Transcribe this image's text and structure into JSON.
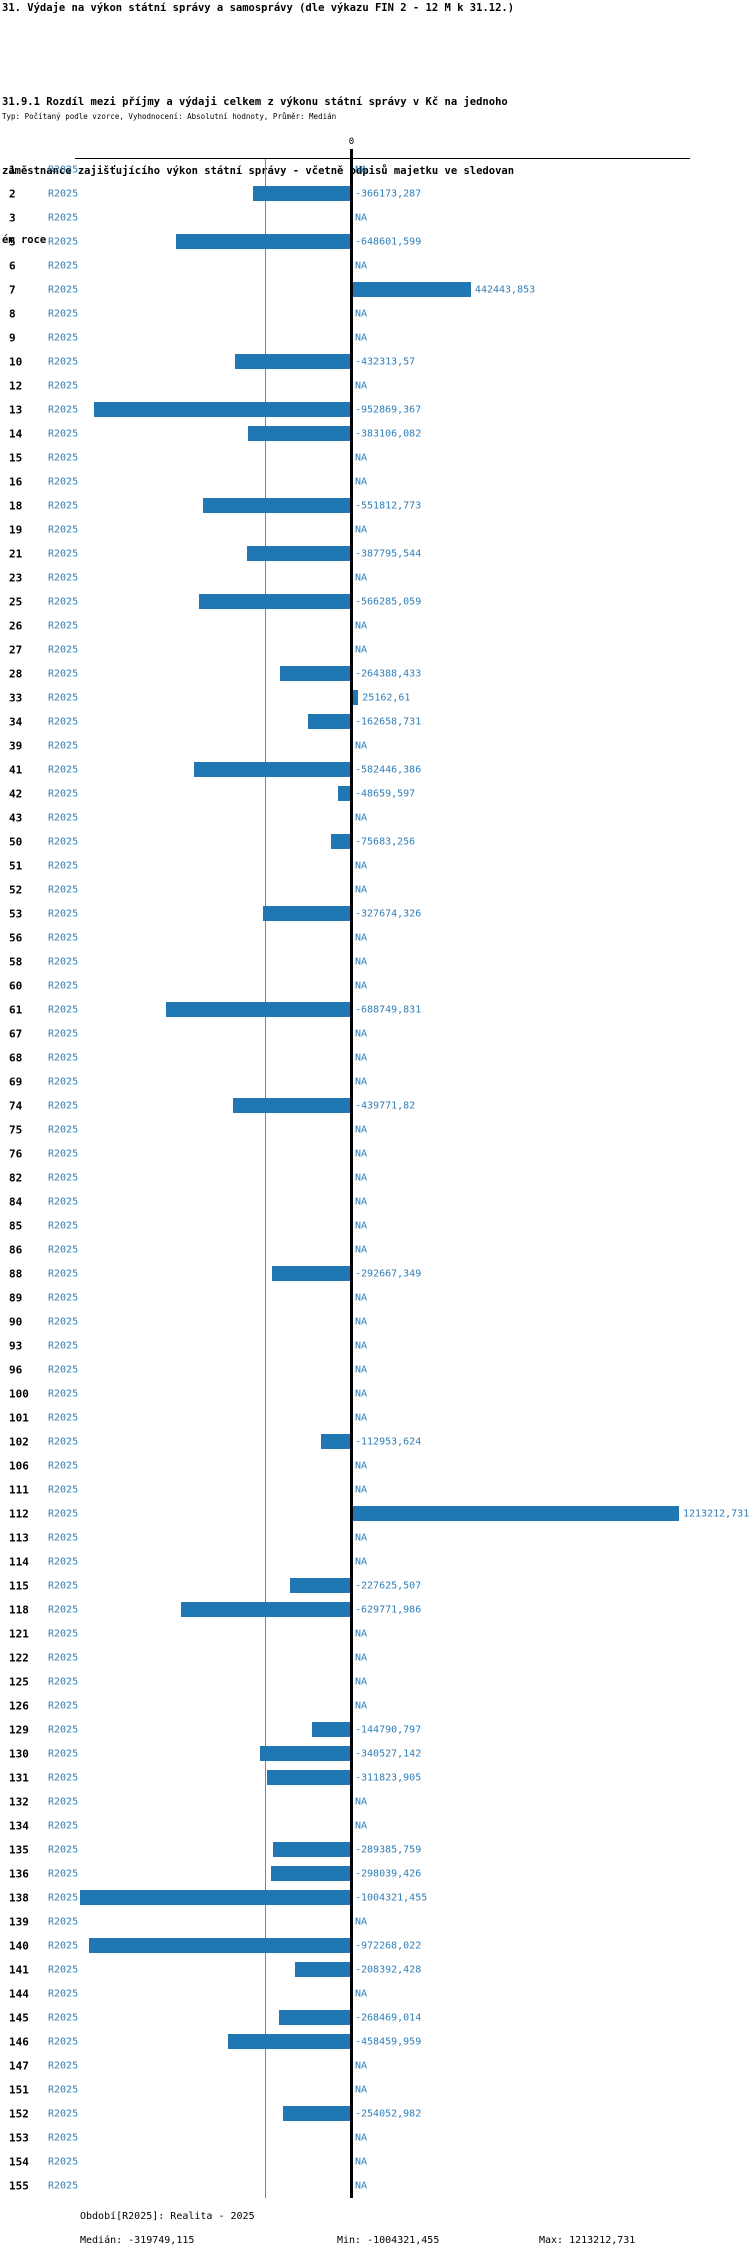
{
  "title": "31. Výdaje na výkon státní správy a samosprávy (dle výkazu FIN 2 - 12 M k 31.12.)",
  "subtitle_lines": [
    "31.9.1 Rozdíl mezi příjmy a výdaji celkem z výkonu státní správy v Kč na jednoho",
    "zaměstnance zajišťujícího výkon státní správy - včetně odpisů majetku ve sledovan",
    "ém roce"
  ],
  "meta": "Typ: Počítaný podle vzorce, Vyhodnocení: Absolutní hodnoty, Průměr: Medián",
  "axis": {
    "zero_label": "0"
  },
  "series_label": "R2025",
  "colors": {
    "bar": "#1f77b4",
    "blue_text": "#2e7eb8",
    "median_line": "#4a94c8",
    "zero_line": "#000000"
  },
  "footer": {
    "period": "Období[R2025]: Realita - 2025",
    "median": "Medián: -319749,115",
    "min": "Min: -1004321,455",
    "max": "Max: 1213212,731"
  },
  "chart_data": {
    "type": "bar",
    "orientation": "horizontal",
    "series_name": "R2025",
    "na_label": "NA",
    "median": -319749.115,
    "min": -1004321.455,
    "max": 1213212.731,
    "categories": [
      1,
      2,
      3,
      5,
      6,
      7,
      8,
      9,
      10,
      12,
      13,
      14,
      15,
      16,
      18,
      19,
      21,
      23,
      25,
      26,
      27,
      28,
      33,
      34,
      39,
      41,
      42,
      43,
      50,
      51,
      52,
      53,
      56,
      58,
      60,
      61,
      67,
      68,
      69,
      74,
      75,
      76,
      82,
      84,
      85,
      86,
      88,
      89,
      90,
      93,
      96,
      100,
      101,
      102,
      106,
      111,
      112,
      113,
      114,
      115,
      118,
      121,
      122,
      125,
      126,
      129,
      130,
      131,
      132,
      134,
      135,
      136,
      138,
      139,
      140,
      141,
      144,
      145,
      146,
      147,
      151,
      152,
      153,
      154,
      155
    ],
    "values": [
      null,
      -366173.287,
      null,
      -648601.599,
      null,
      442443.853,
      null,
      null,
      -432313.57,
      null,
      -952869.367,
      -383106.082,
      null,
      null,
      -551812.773,
      null,
      -387795.544,
      null,
      -566285.059,
      null,
      null,
      -264388.433,
      25162.61,
      -162658.731,
      null,
      -582446.386,
      -48659.597,
      null,
      -75683.256,
      null,
      null,
      -327674.326,
      null,
      null,
      null,
      -688749.831,
      null,
      null,
      null,
      -439771.82,
      null,
      null,
      null,
      null,
      null,
      null,
      -292667.349,
      null,
      null,
      null,
      null,
      null,
      null,
      -112953.624,
      null,
      null,
      1213212.731,
      null,
      null,
      -227625.507,
      -629771.986,
      null,
      null,
      null,
      null,
      -144790.797,
      -340527.142,
      -311823.905,
      null,
      null,
      -289385.759,
      -298039.426,
      -1004321.455,
      null,
      -972268.022,
      -208392.428,
      null,
      -268469.014,
      -458459.959,
      null,
      null,
      -254052.982,
      null,
      null,
      null
    ],
    "value_labels": [
      "NA",
      "-366173,287",
      "NA",
      "-648601,599",
      "NA",
      "442443,853",
      "NA",
      "NA",
      "-432313,57",
      "NA",
      "-952869,367",
      "-383106,082",
      "NA",
      "NA",
      "-551812,773",
      "NA",
      "-387795,544",
      "NA",
      "-566285,059",
      "NA",
      "NA",
      "-264388,433",
      "25162,61",
      "-162658,731",
      "NA",
      "-582446,386",
      "-48659,597",
      "NA",
      "-75683,256",
      "NA",
      "NA",
      "-327674,326",
      "NA",
      "NA",
      "NA",
      "-688749,831",
      "NA",
      "NA",
      "NA",
      "-439771,82",
      "NA",
      "NA",
      "NA",
      "NA",
      "NA",
      "NA",
      "-292667,349",
      "NA",
      "NA",
      "NA",
      "NA",
      "NA",
      "NA",
      "-112953,624",
      "NA",
      "NA",
      "1213212,731",
      "NA",
      "NA",
      "-227625,507",
      "-629771,986",
      "NA",
      "NA",
      "NA",
      "NA",
      "-144790,797",
      "-340527,142",
      "-311823,905",
      "NA",
      "NA",
      "-289385,759",
      "-298039,426",
      "-1004321,455",
      "NA",
      "-972268,022",
      "-208392,428",
      "NA",
      "-268469,014",
      "-458459,959",
      "NA",
      "NA",
      "-254052,982",
      "NA",
      "NA",
      "NA"
    ]
  }
}
